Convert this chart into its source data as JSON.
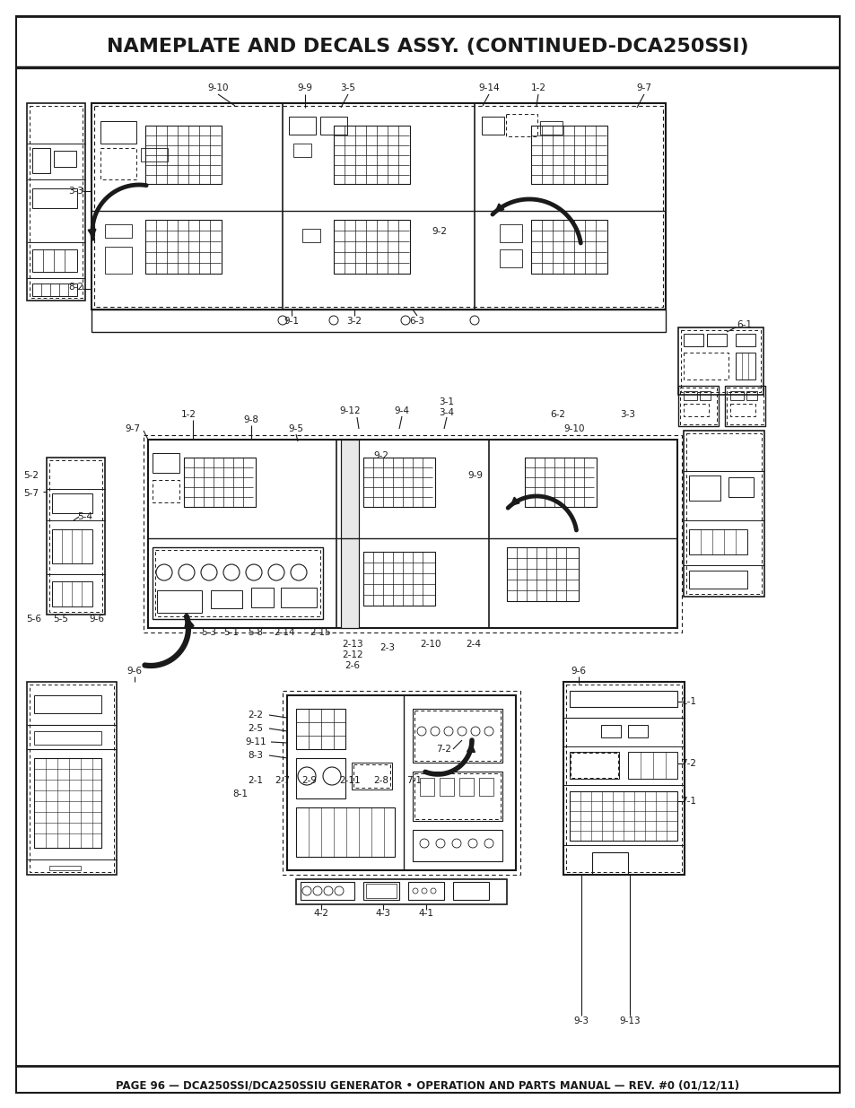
{
  "title": "NAMEPLATE AND DECALS ASSY. (CONTINUED-DCA250SSI)",
  "footer": "PAGE 96 — DCA250SSI/DCA250SSIU GENERATOR • OPERATION AND PARTS MANUAL — REV. #0 (01/12/11)",
  "bg_color": "#ffffff",
  "title_color": "#1a1a1a",
  "footer_color": "#1a1a1a",
  "title_fontsize": 16,
  "footer_fontsize": 8.5,
  "line_color": "#1a1a1a"
}
